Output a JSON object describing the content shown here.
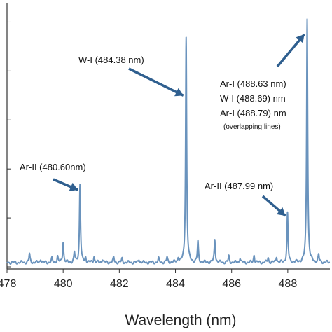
{
  "chart_data": {
    "type": "line",
    "title": "",
    "xlabel": "Wavelength (nm)",
    "ylabel": "",
    "xlim": [
      478,
      489.5
    ],
    "ylim": [
      0,
      1.05
    ],
    "x_ticks": [
      "478",
      "480",
      "482",
      "484",
      "486",
      "488"
    ],
    "grid": false,
    "series": [
      {
        "color": "#6a93bd",
        "peaks": [
          {
            "x": 478.8,
            "y": 0.035
          },
          {
            "x": 479.2,
            "y": 0.015
          },
          {
            "x": 479.6,
            "y": 0.015
          },
          {
            "x": 479.8,
            "y": 0.025
          },
          {
            "x": 480.0,
            "y": 0.085
          },
          {
            "x": 480.4,
            "y": 0.04
          },
          {
            "x": 480.6,
            "y": 0.32
          },
          {
            "x": 480.8,
            "y": 0.02
          },
          {
            "x": 481.1,
            "y": 0.025
          },
          {
            "x": 481.4,
            "y": 0.015
          },
          {
            "x": 481.8,
            "y": 0.02
          },
          {
            "x": 482.1,
            "y": 0.015
          },
          {
            "x": 482.7,
            "y": 0.015
          },
          {
            "x": 483.4,
            "y": 0.015
          },
          {
            "x": 483.7,
            "y": 0.02
          },
          {
            "x": 484.1,
            "y": 0.02
          },
          {
            "x": 484.38,
            "y": 0.92
          },
          {
            "x": 484.8,
            "y": 0.085
          },
          {
            "x": 485.4,
            "y": 0.095
          },
          {
            "x": 485.9,
            "y": 0.025
          },
          {
            "x": 486.3,
            "y": 0.02
          },
          {
            "x": 486.8,
            "y": 0.03
          },
          {
            "x": 487.3,
            "y": 0.02
          },
          {
            "x": 487.6,
            "y": 0.025
          },
          {
            "x": 487.99,
            "y": 0.2
          },
          {
            "x": 488.69,
            "y": 1.0
          },
          {
            "x": 489.1,
            "y": 0.03
          }
        ]
      }
    ],
    "annotations": [
      {
        "text": "W-I (484.38 nm)",
        "x": 484.38,
        "y": 0.92
      },
      {
        "text": "Ar-II (480.60nm)",
        "x": 480.6,
        "y": 0.32
      },
      {
        "text": "Ar-II (487.99 nm)",
        "x": 487.99,
        "y": 0.2
      },
      {
        "text": "Ar-I (488.63 nm)",
        "x": 488.69,
        "y": 1.0
      },
      {
        "text": "W-I (488.69) nm",
        "x": 488.69,
        "y": 1.0
      },
      {
        "text": "Ar-I (488.79) nm",
        "x": 488.69,
        "y": 1.0
      },
      {
        "text": "(overlapping lines)",
        "x": 488.69,
        "y": 1.0
      }
    ]
  }
}
